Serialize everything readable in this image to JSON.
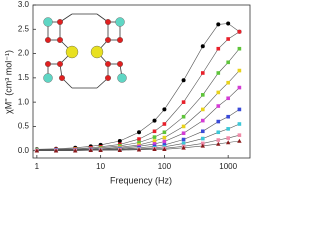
{
  "chart_data": {
    "type": "scatter-line",
    "x_label": "Frequency (Hz)",
    "y_label": "χM'' (cm³ mol⁻¹)",
    "x_log": true,
    "xlim": [
      0.87,
      2200
    ],
    "xticks": [
      1,
      10,
      100,
      1000
    ],
    "ylim": [
      -0.15,
      3.0
    ],
    "yticks": [
      {
        "value": 0,
        "label": "0.0"
      },
      {
        "value": 0.5,
        "label": "0.5"
      },
      {
        "value": 1.0,
        "label": "1.0"
      },
      {
        "value": 1.5,
        "label": "1.5"
      },
      {
        "value": 2.0,
        "label": "2.0"
      },
      {
        "value": 2.5,
        "label": "2.5"
      },
      {
        "value": 3.0,
        "label": "3.0"
      }
    ],
    "x": [
      1,
      2,
      4,
      7,
      10,
      20,
      40,
      70,
      100,
      200,
      400,
      700,
      1000,
      1500
    ],
    "series": [
      {
        "color": "#000000",
        "marker": "circle",
        "values": [
          0.03,
          0.04,
          0.06,
          0.09,
          0.12,
          0.2,
          0.38,
          0.62,
          0.85,
          1.45,
          2.15,
          2.6,
          2.62,
          2.45
        ]
      },
      {
        "color": "#e8202a",
        "marker": "square",
        "values": [
          0.02,
          0.03,
          0.04,
          0.06,
          0.08,
          0.13,
          0.24,
          0.4,
          0.55,
          1.0,
          1.6,
          2.1,
          2.3,
          2.45
        ]
      },
      {
        "color": "#5ec43a",
        "marker": "square",
        "values": [
          0.02,
          0.02,
          0.03,
          0.04,
          0.06,
          0.1,
          0.17,
          0.28,
          0.38,
          0.7,
          1.15,
          1.6,
          1.82,
          2.1
        ]
      },
      {
        "color": "#e8d21a",
        "marker": "square",
        "values": [
          0.02,
          0.02,
          0.03,
          0.03,
          0.04,
          0.07,
          0.12,
          0.2,
          0.27,
          0.5,
          0.85,
          1.2,
          1.4,
          1.65
        ]
      },
      {
        "color": "#d43cd4",
        "marker": "square",
        "values": [
          0.01,
          0.02,
          0.02,
          0.03,
          0.03,
          0.05,
          0.09,
          0.14,
          0.19,
          0.36,
          0.62,
          0.92,
          1.08,
          1.3
        ]
      },
      {
        "color": "#3a4ad8",
        "marker": "square",
        "values": [
          0.01,
          0.01,
          0.02,
          0.02,
          0.02,
          0.04,
          0.06,
          0.09,
          0.12,
          0.23,
          0.4,
          0.6,
          0.7,
          0.85
        ]
      },
      {
        "color": "#3cc8d8",
        "marker": "square",
        "values": [
          0.01,
          0.01,
          0.01,
          0.01,
          0.02,
          0.03,
          0.04,
          0.06,
          0.08,
          0.15,
          0.25,
          0.38,
          0.45,
          0.55
        ]
      },
      {
        "color": "#f08aa8",
        "marker": "square",
        "values": [
          0,
          0,
          0.01,
          0.01,
          0.01,
          0.02,
          0.03,
          0.04,
          0.05,
          0.09,
          0.15,
          0.22,
          0.26,
          0.32
        ]
      },
      {
        "color": "#8a1a1a",
        "marker": "triangle",
        "values": [
          0,
          0,
          0,
          0.01,
          0.01,
          0.01,
          0.02,
          0.03,
          0.03,
          0.06,
          0.1,
          0.14,
          0.17,
          0.2
        ]
      }
    ]
  }
}
